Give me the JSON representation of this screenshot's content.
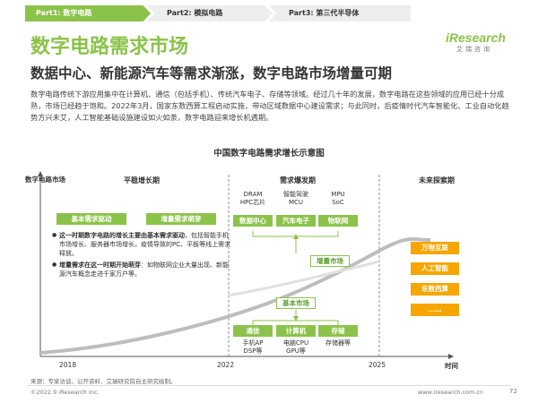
{
  "tabs": [
    "Part1: 数字电路",
    "Part2: 模拟电路",
    "Part3: 第三代半导体"
  ],
  "logo": {
    "brand": "iResearch",
    "sub": "艾瑞咨询"
  },
  "title": "数字电路需求市场",
  "subtitle": "数据中心、新能源汽车等需求渐涨，数字电路市场增量可期",
  "description": "数字电路传统下游应用集中在计算机、通信（包括手机）、传统汽车电子、存储等领域。经过几十年的发展，数字电路在这些领域的应用已经十分成熟，市场已经趋于饱和。2022年3月，国家东数西算工程启动实施，带动区域数据中心建设需求；与此同时，后疫情时代汽车智能化、工业自动化趋势方兴未艾，人工智能基础设施建设如火如荼，数字电路迎来增长机遇期。",
  "diagram": {
    "title": "中国数字电路需求增长示意图",
    "y_axis_label": "数字电路市场",
    "x_axis_label": "时间",
    "years": [
      "2018",
      "2022",
      "2025"
    ],
    "periods": [
      "平稳增长期",
      "需求爆发期",
      "未来探索期"
    ],
    "stage1": {
      "badges": [
        "基本需求驱动",
        "增量需求萌芽"
      ],
      "bullet1_bold": "这一时期数字电路的增长主要由基本需求驱动",
      "bullet1_rest": "，包括智能手机市场增长、服务器市场增长，疫情导致的PC、平板等线上需求释放。",
      "bullet2_bold": "增量需求在这一时期开始萌芽",
      "bullet2_rest": "：如物联网企业大量出现、新能源汽车概念走进千家万户等。"
    },
    "stage2": {
      "top_labels": [
        "DRAM\nHPC芯片",
        "智能驾驶\nMCU",
        "MPU\nSoC"
      ],
      "top_boxes": [
        "数据中心",
        "汽车电子",
        "物联网"
      ],
      "increment_label": "增量市场",
      "base_label": "基本市场",
      "bottom_boxes": [
        "通信",
        "计算机",
        "存储"
      ],
      "bottom_labels": [
        "手机AP\nDSP等",
        "电脑CPU\nGPU等",
        "存储器等"
      ]
    },
    "stage3": {
      "items": [
        "万物互联",
        "人工智能",
        "东数西算",
        "……"
      ]
    },
    "colors": {
      "green": "#8bc34a",
      "orange": "#f7a600",
      "curve": "#9e9e9e"
    }
  },
  "source": "来源：专家访谈、公开资料、艾瑞研究院自主研究绘制。",
  "footer": {
    "left": "©2022.9 iResearch Inc.",
    "right": "www.iresearch.com.cn",
    "page": "72"
  }
}
